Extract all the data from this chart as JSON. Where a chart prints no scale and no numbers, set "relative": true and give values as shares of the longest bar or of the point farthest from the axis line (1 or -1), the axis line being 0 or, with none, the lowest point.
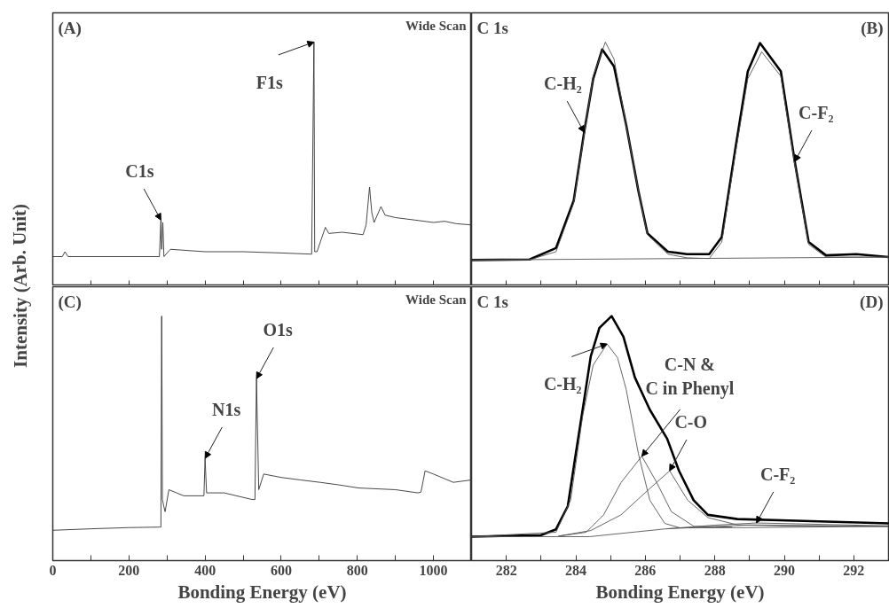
{
  "chart_data": [
    {
      "type": "line",
      "relative": true,
      "xlim": [
        0,
        1100
      ],
      "xticks": [
        0,
        {
          "value": 100,
          "label": null
        },
        200,
        {
          "value": 300,
          "label": null
        },
        400,
        {
          "value": 500,
          "label": null
        },
        600,
        {
          "value": 700,
          "label": null
        },
        800,
        {
          "value": 900,
          "label": null
        },
        1000
      ],
      "tick_labels": false,
      "grid": false,
      "ylabel": "Intensity (Arb. Unit)",
      "annotations": [
        "(A)",
        "Wide Scan",
        {
          "text": "C1s",
          "x": 284,
          "y": 0.27
        },
        {
          "text": "F1s",
          "x": 686,
          "y": 1.0
        }
      ],
      "series": [
        {
          "color": "#333333",
          "x": [
            0,
            25,
            32,
            40,
            280,
            284,
            286,
            289,
            292,
            309,
            400,
            500,
            600,
            680,
            686,
            688,
            694,
            716,
            725,
            760,
            815,
            823,
            832,
            838,
            844,
            862,
            873,
            900,
            951,
            1000,
            1029,
            1060,
            1100
          ],
          "values": [
            0.12,
            0.12,
            0.14,
            0.12,
            0.12,
            0.27,
            0.15,
            0.26,
            0.12,
            0.15,
            0.14,
            0.14,
            0.135,
            0.13,
            1.0,
            0.14,
            0.14,
            0.24,
            0.215,
            0.22,
            0.21,
            0.25,
            0.405,
            0.3,
            0.26,
            0.325,
            0.29,
            0.28,
            0.27,
            0.26,
            0.265,
            0.255,
            0.25
          ]
        }
      ]
    },
    {
      "type": "line",
      "relative": true,
      "xlim": [
        281,
        293
      ],
      "xticks": [
        {
          "value": 281,
          "label": null
        },
        282,
        {
          "value": 283,
          "label": null
        },
        284,
        {
          "value": 285,
          "label": null
        },
        286,
        {
          "value": 287,
          "label": null
        },
        288,
        {
          "value": 289,
          "label": null
        },
        290,
        {
          "value": 291,
          "label": null
        },
        292
      ],
      "tick_labels": false,
      "grid": false,
      "annotations": [
        "C 1s",
        "(B)",
        {
          "text": "C-H₂",
          "x": 284.24,
          "y": 0.63
        },
        {
          "text": "C-F₂",
          "x": 290.3,
          "y": 0.51
        }
      ],
      "series": [
        {
          "color": "#000000",
          "x": [
            281,
            282.67,
            283.43,
            283.94,
            284.24,
            284.5,
            284.76,
            285.1,
            285.45,
            285.8,
            286.06,
            286.65,
            287.2,
            287.84,
            288.2,
            288.6,
            288.95,
            289.3,
            289.9,
            290.3,
            290.7,
            291.2,
            292.07,
            293
          ],
          "values": [
            0.106,
            0.108,
            0.155,
            0.35,
            0.63,
            0.85,
            0.97,
            0.9,
            0.66,
            0.39,
            0.216,
            0.14,
            0.13,
            0.13,
            0.2,
            0.57,
            0.88,
            0.996,
            0.88,
            0.51,
            0.18,
            0.125,
            0.13,
            0.118
          ]
        },
        {
          "color": "#555555",
          "x": [
            281,
            282.67,
            283.43,
            283.94,
            284.24,
            284.5,
            284.85,
            285.1,
            285.45,
            285.8,
            286.06,
            286.65,
            287.2,
            287.84,
            288.2,
            288.6,
            288.95,
            289.35,
            289.9,
            290.3,
            290.7,
            291.2,
            292.07,
            293
          ],
          "values": [
            0.106,
            0.107,
            0.14,
            0.34,
            0.62,
            0.86,
            1.0,
            0.93,
            0.66,
            0.39,
            0.21,
            0.13,
            0.115,
            0.112,
            0.18,
            0.55,
            0.85,
            0.96,
            0.86,
            0.5,
            0.17,
            0.118,
            0.118,
            0.118
          ]
        },
        {
          "color": "#555555",
          "x": [
            281,
            293
          ],
          "values": [
            0.106,
            0.118
          ]
        }
      ]
    },
    {
      "type": "line",
      "relative": true,
      "xlim": [
        0,
        1100
      ],
      "xticks": [
        0,
        {
          "value": 100,
          "label": null
        },
        200,
        {
          "value": 300,
          "label": null
        },
        400,
        {
          "value": 500,
          "label": null
        },
        600,
        {
          "value": 700,
          "label": null
        },
        800,
        {
          "value": 900,
          "label": null
        },
        1000
      ],
      "tick_labels": "x",
      "grid": false,
      "xlabel": "Bonding Energy (eV)",
      "annotations": [
        "(C)",
        "Wide Scan",
        {
          "text": "N1s",
          "x": 400,
          "y": 0.418
        },
        {
          "text": "O1s",
          "x": 535,
          "y": 0.744
        }
      ],
      "series": [
        {
          "color": "#333333",
          "x": [
            0,
            100,
            200,
            280,
            284,
            286,
            288,
            291,
            295,
            305,
            344,
            397,
            400,
            404,
            450,
            523,
            531,
            535,
            541,
            554,
            600,
            650,
            702,
            750,
            803,
            900,
            959,
            967,
            978,
            1000,
            1052,
            1100
          ],
          "values": [
            0.124,
            0.13,
            0.135,
            0.137,
            0.137,
            1.0,
            0.25,
            0.226,
            0.2,
            0.29,
            0.265,
            0.265,
            0.418,
            0.277,
            0.277,
            0.25,
            0.25,
            0.744,
            0.29,
            0.354,
            0.34,
            0.33,
            0.32,
            0.31,
            0.297,
            0.29,
            0.277,
            0.28,
            0.367,
            0.354,
            0.32,
            0.33
          ]
        }
      ]
    },
    {
      "type": "line",
      "relative": true,
      "xlim": [
        281,
        293
      ],
      "xticks": [
        {
          "value": 281,
          "label": null
        },
        282,
        {
          "value": 283,
          "label": null
        },
        284,
        {
          "value": 285,
          "label": null
        },
        286,
        {
          "value": 287,
          "label": null
        },
        288,
        {
          "value": 289,
          "label": null
        },
        290,
        {
          "value": 291,
          "label": null
        },
        292
      ],
      "tick_labels": "x",
      "grid": false,
      "xlabel": "Bonding Energy (eV)",
      "annotations": [
        "C 1s",
        "(D)",
        {
          "text": "C-H₂",
          "x": 284.9,
          "y": 0.886
        },
        {
          "text": "C-N &\nC in Phenyl",
          "x": 285.9,
          "y": 0.427
        },
        {
          "text": "C-O",
          "x": 286.7,
          "y": 0.367
        },
        {
          "text": "C-F₂",
          "x": 289.2,
          "y": 0.154
        }
      ],
      "series": [
        {
          "color": "#000000",
          "x": [
            281,
            283.0,
            283.43,
            283.77,
            284.0,
            284.2,
            284.43,
            284.68,
            285.03,
            285.37,
            285.7,
            286.13,
            286.63,
            286.97,
            287.39,
            287.8,
            288.65,
            290.34,
            293
          ],
          "values": [
            0.098,
            0.104,
            0.128,
            0.223,
            0.438,
            0.62,
            0.835,
            0.952,
            1.0,
            0.916,
            0.749,
            0.617,
            0.498,
            0.367,
            0.247,
            0.187,
            0.17,
            0.163,
            0.152
          ]
        },
        {
          "color": "#555555",
          "x": [
            281,
            283.43,
            283.85,
            284.2,
            284.5,
            284.9,
            285.2,
            285.45,
            285.8,
            286.13,
            286.56,
            287,
            288,
            293
          ],
          "values": [
            0.098,
            0.116,
            0.247,
            0.594,
            0.8,
            0.886,
            0.83,
            0.7,
            0.438,
            0.247,
            0.152,
            0.134,
            0.134,
            0.14
          ]
        },
        {
          "color": "#555555",
          "x": [
            283.5,
            284.3,
            284.8,
            285.3,
            285.9,
            286.33,
            286.75,
            287.4,
            288.5
          ],
          "values": [
            0.1,
            0.116,
            0.187,
            0.319,
            0.427,
            0.319,
            0.2,
            0.14,
            0.137
          ]
        },
        {
          "color": "#555555",
          "x": [
            283.5,
            284.43,
            285.3,
            286.13,
            286.7,
            287.22,
            287.8,
            288.65,
            290,
            293
          ],
          "values": [
            0.1,
            0.123,
            0.187,
            0.295,
            0.367,
            0.247,
            0.176,
            0.146,
            0.142,
            0.14
          ]
        },
        {
          "color": "#555555",
          "x": [
            286.6,
            288,
            289.2,
            290.5,
            293
          ],
          "values": [
            0.13,
            0.145,
            0.154,
            0.15,
            0.142
          ]
        },
        {
          "color": "#555555",
          "x": [
            281,
            284.4,
            286.6,
            289,
            293
          ],
          "values": [
            0.098,
            0.098,
            0.13,
            0.146,
            0.14
          ]
        }
      ]
    }
  ]
}
